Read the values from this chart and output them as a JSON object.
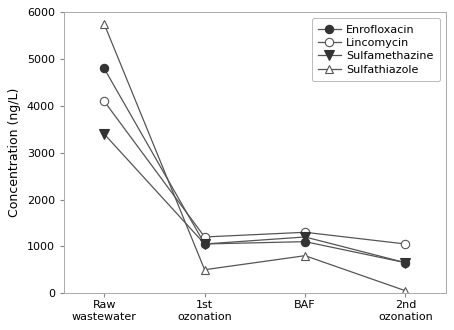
{
  "x_labels": [
    "Raw\nwastewater",
    "1st\nozonation",
    "BAF",
    "2nd\nozonation"
  ],
  "series": [
    {
      "name": "Enrofloxacin",
      "values": [
        4800,
        1050,
        1100,
        650
      ],
      "marker": "o",
      "markerfacecolor": "#333333",
      "markeredgecolor": "#333333",
      "color": "#555555",
      "markersize": 6
    },
    {
      "name": "Lincomycin",
      "values": [
        4100,
        1200,
        1300,
        1050
      ],
      "marker": "o",
      "markerfacecolor": "white",
      "markeredgecolor": "#555555",
      "color": "#555555",
      "markersize": 6
    },
    {
      "name": "Sulfamethazine",
      "values": [
        3400,
        1050,
        1200,
        650
      ],
      "marker": "v",
      "markerfacecolor": "#333333",
      "markeredgecolor": "#333333",
      "color": "#555555",
      "markersize": 7
    },
    {
      "name": "Sulfathiazole",
      "values": [
        5750,
        500,
        800,
        50
      ],
      "marker": "^",
      "markerfacecolor": "white",
      "markeredgecolor": "#555555",
      "color": "#555555",
      "markersize": 6
    }
  ],
  "ylabel": "Concentration (ng/L)",
  "ylim": [
    0,
    6000
  ],
  "yticks": [
    0,
    1000,
    2000,
    3000,
    4000,
    5000,
    6000
  ],
  "background_color": "#ffffff",
  "axes_background": "#ffffff",
  "linewidth": 0.9,
  "legend_fontsize": 8,
  "axis_fontsize": 8,
  "ylabel_fontsize": 9
}
